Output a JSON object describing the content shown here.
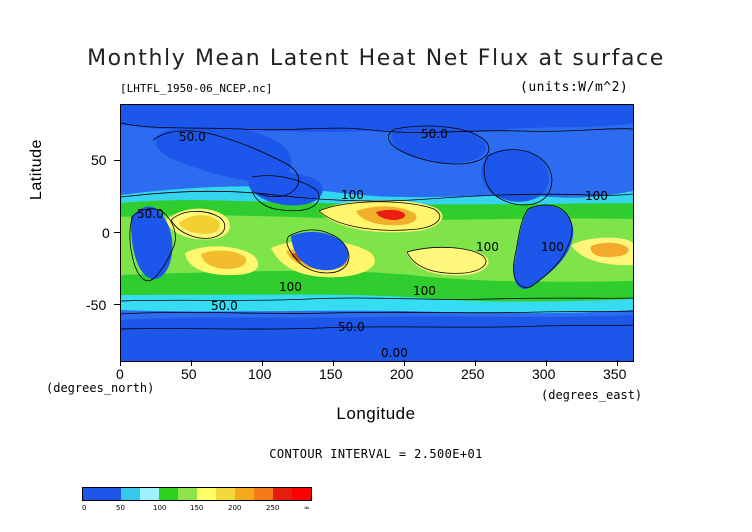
{
  "title": "Monthly Mean Latent Heat Net Flux at surface",
  "dataset_label": "[LHTFL_1950-06_NCEP.nc]",
  "units_label": "(units:W/m^2)",
  "axes": {
    "x_label": "Longitude",
    "y_label": "Latitude",
    "x_unit_label": "(degrees_east)",
    "y_unit_label": "(degrees_north)",
    "x_ticks": [
      "0",
      "50",
      "100",
      "150",
      "200",
      "250",
      "300",
      "350"
    ],
    "y_ticks": [
      "50",
      "0",
      "-50"
    ]
  },
  "contour_note": "CONTOUR INTERVAL = 2.500E+01",
  "map": {
    "type": "filled-contour-map",
    "x_range": [
      0,
      360
    ],
    "y_range": [
      -90,
      90
    ],
    "contour_labels": [
      "50.0",
      "50.0",
      "50.0",
      "50.0",
      "100",
      "100",
      "100",
      "100",
      "100",
      "100",
      "50.0",
      "0.00"
    ]
  },
  "colorbar": {
    "colors": [
      "#1f56ea",
      "#1f56ea",
      "#38c8ee",
      "#9ef1ff",
      "#2bd11d",
      "#8ee24a",
      "#ffff66",
      "#f3d93c",
      "#f4a91b",
      "#f67a15",
      "#e31e11",
      "#ff0000"
    ],
    "labels": [
      "0",
      "50",
      "100",
      "150",
      "200",
      "250",
      "∞"
    ]
  }
}
